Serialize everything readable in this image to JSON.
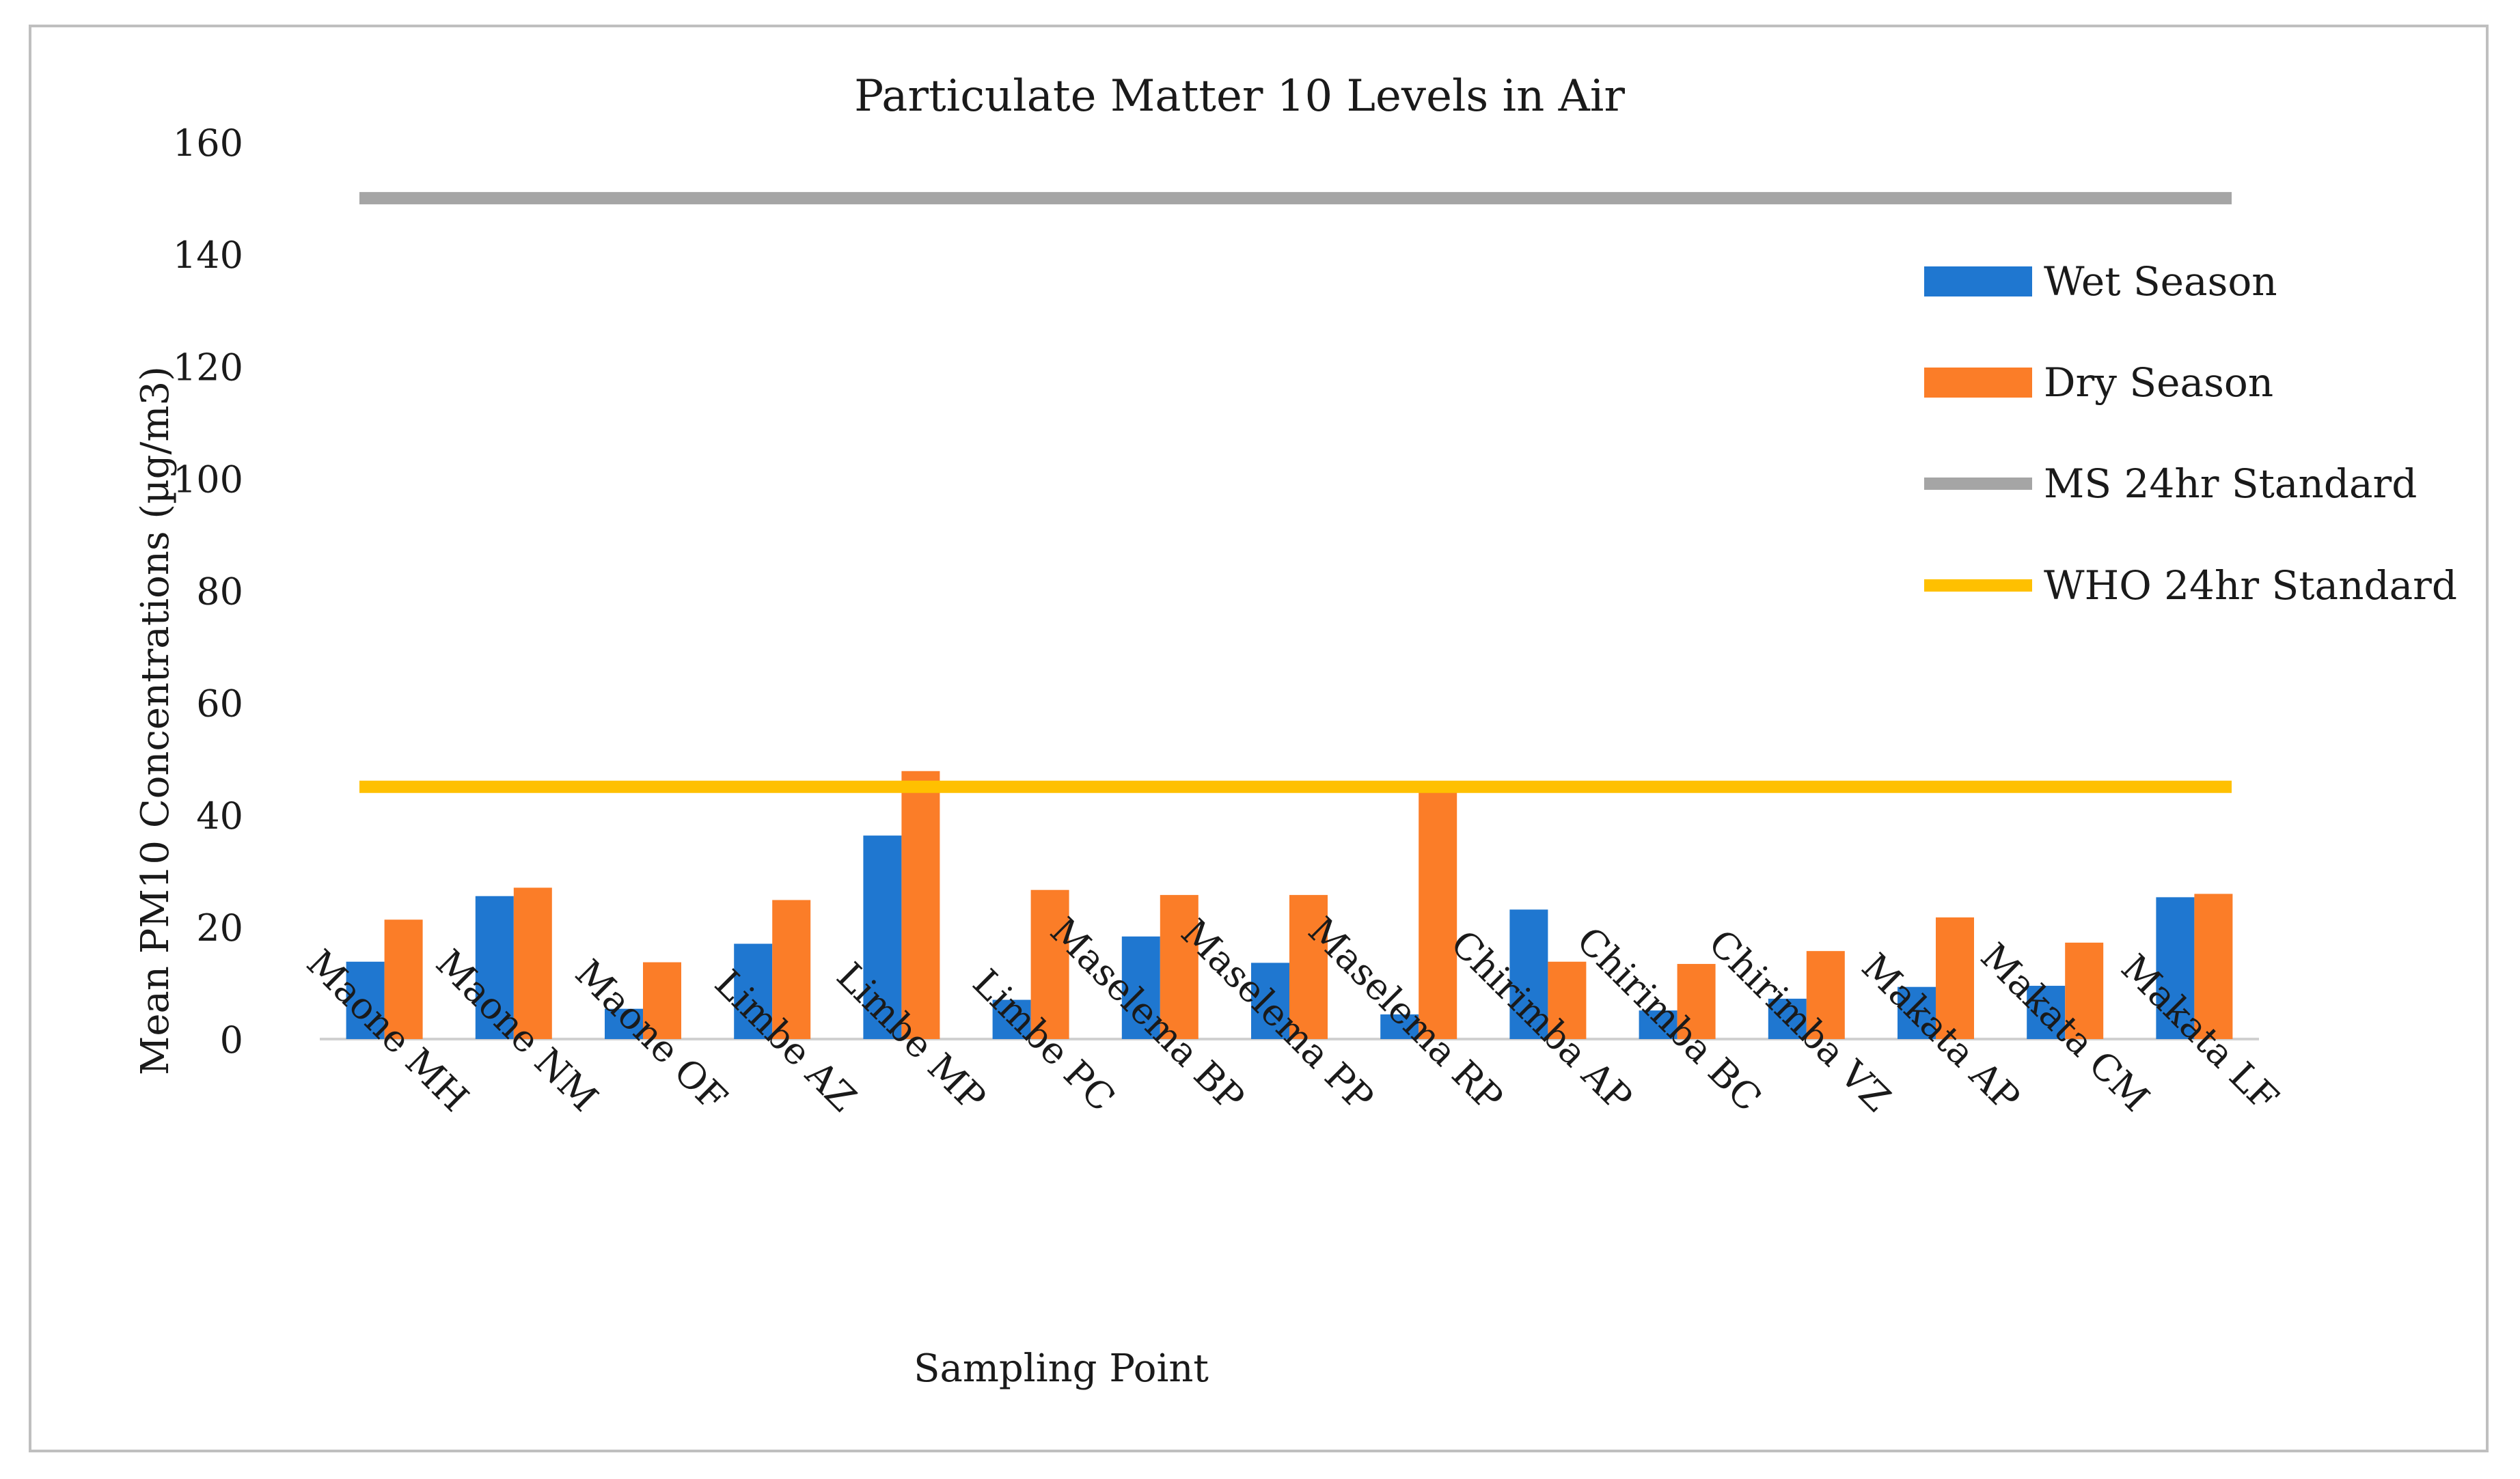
{
  "chart_data": {
    "type": "bar",
    "title": "Particulate Matter 10 Levels in Air",
    "xlabel": "Sampling Point",
    "ylabel": "Mean PM10 Concentrations (µg/m3)",
    "ylim": [
      0,
      160
    ],
    "yticks": [
      0,
      20,
      40,
      60,
      80,
      100,
      120,
      140,
      160
    ],
    "grid": false,
    "legend_position": "right",
    "categories": [
      "Maone MH",
      "Maone NM",
      "Maone OF",
      "Limbe AZ",
      "Limbe MP",
      "Limbe PC",
      "Maselema BP",
      "Maselema PP",
      "Maselema RP",
      "Chirimba AP",
      "Chirimba BC",
      "Chirimba VZ",
      "Makata AP",
      "Makata CM",
      "Makata LF"
    ],
    "series": [
      {
        "name": "Wet Season",
        "kind": "bar",
        "color": "#1f77d0",
        "values": [
          13.8,
          25.5,
          5.4,
          17.0,
          36.3,
          7.0,
          18.3,
          13.6,
          4.4,
          23.1,
          5.1,
          7.2,
          9.3,
          9.5,
          25.3
        ]
      },
      {
        "name": "Dry Season",
        "kind": "bar",
        "color": "#fb7d28",
        "values": [
          21.3,
          27.0,
          13.7,
          24.8,
          47.8,
          26.6,
          25.7,
          25.7,
          44.7,
          13.8,
          13.4,
          15.7,
          21.7,
          17.2,
          25.9
        ]
      },
      {
        "name": "MS 24hr Standard",
        "kind": "line",
        "color": "#a5a5a5",
        "value": 150
      },
      {
        "name": "WHO 24hr Standard",
        "kind": "line",
        "color": "#ffc000",
        "value": 45
      }
    ]
  }
}
